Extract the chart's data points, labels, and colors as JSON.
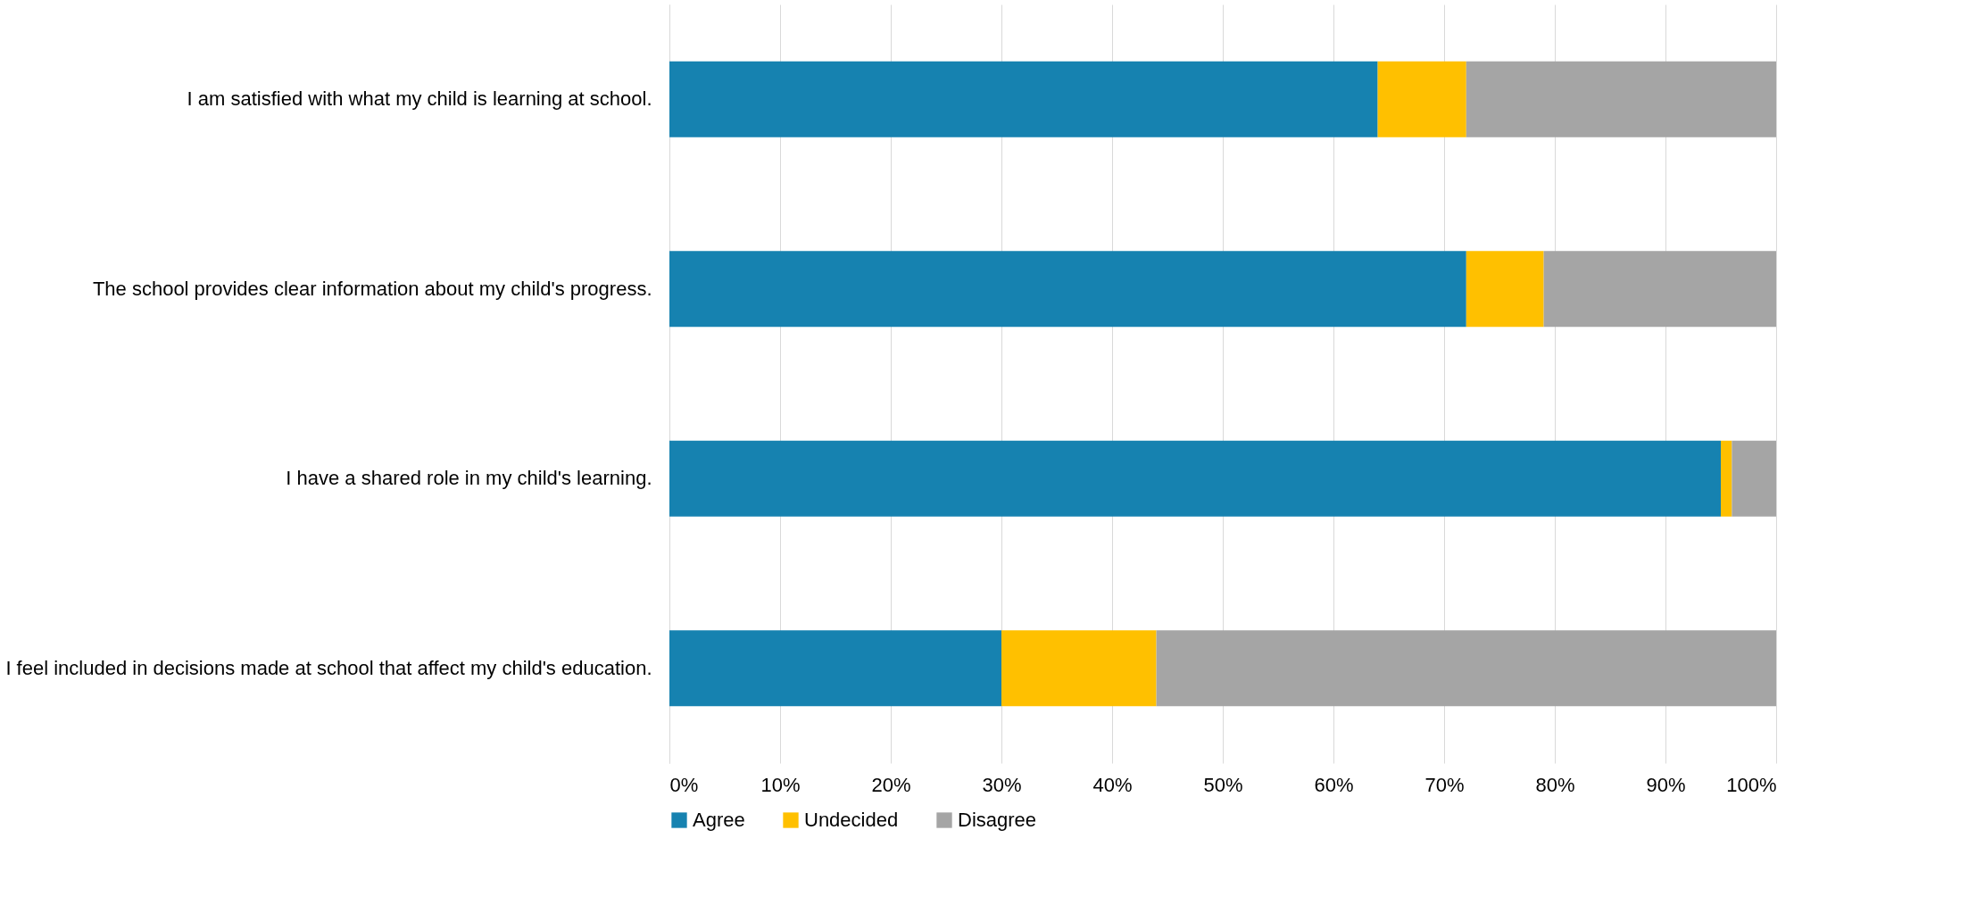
{
  "chart_data": {
    "type": "bar",
    "orientation": "horizontal",
    "stacked": true,
    "categories": [
      "I am satisfied with what my child is learning at school.",
      "The school provides clear information about my child's progress.",
      "I have a shared role in my child's learning.",
      "I feel included in decisions made at school that affect my child's education."
    ],
    "series": [
      {
        "name": "Agree",
        "color": "#1682b0",
        "values": [
          64,
          72,
          95,
          30
        ]
      },
      {
        "name": "Undecided",
        "color": "#ffc000",
        "values": [
          8,
          7,
          1,
          14
        ]
      },
      {
        "name": "Disagree",
        "color": "#a5a5a5",
        "values": [
          28,
          21,
          4,
          56
        ]
      }
    ],
    "xlim": [
      0,
      100
    ],
    "xticks": [
      {
        "value": 0,
        "label": "0%"
      },
      {
        "value": 10,
        "label": "10%"
      },
      {
        "value": 20,
        "label": "20%"
      },
      {
        "value": 30,
        "label": "30%"
      },
      {
        "value": 40,
        "label": "40%"
      },
      {
        "value": 50,
        "label": "50%"
      },
      {
        "value": 60,
        "label": "60%"
      },
      {
        "value": 70,
        "label": "70%"
      },
      {
        "value": 80,
        "label": "80%"
      },
      {
        "value": 90,
        "label": "90%"
      },
      {
        "value": 100,
        "label": "100%"
      }
    ],
    "grid": "x",
    "legend": "bottom"
  }
}
